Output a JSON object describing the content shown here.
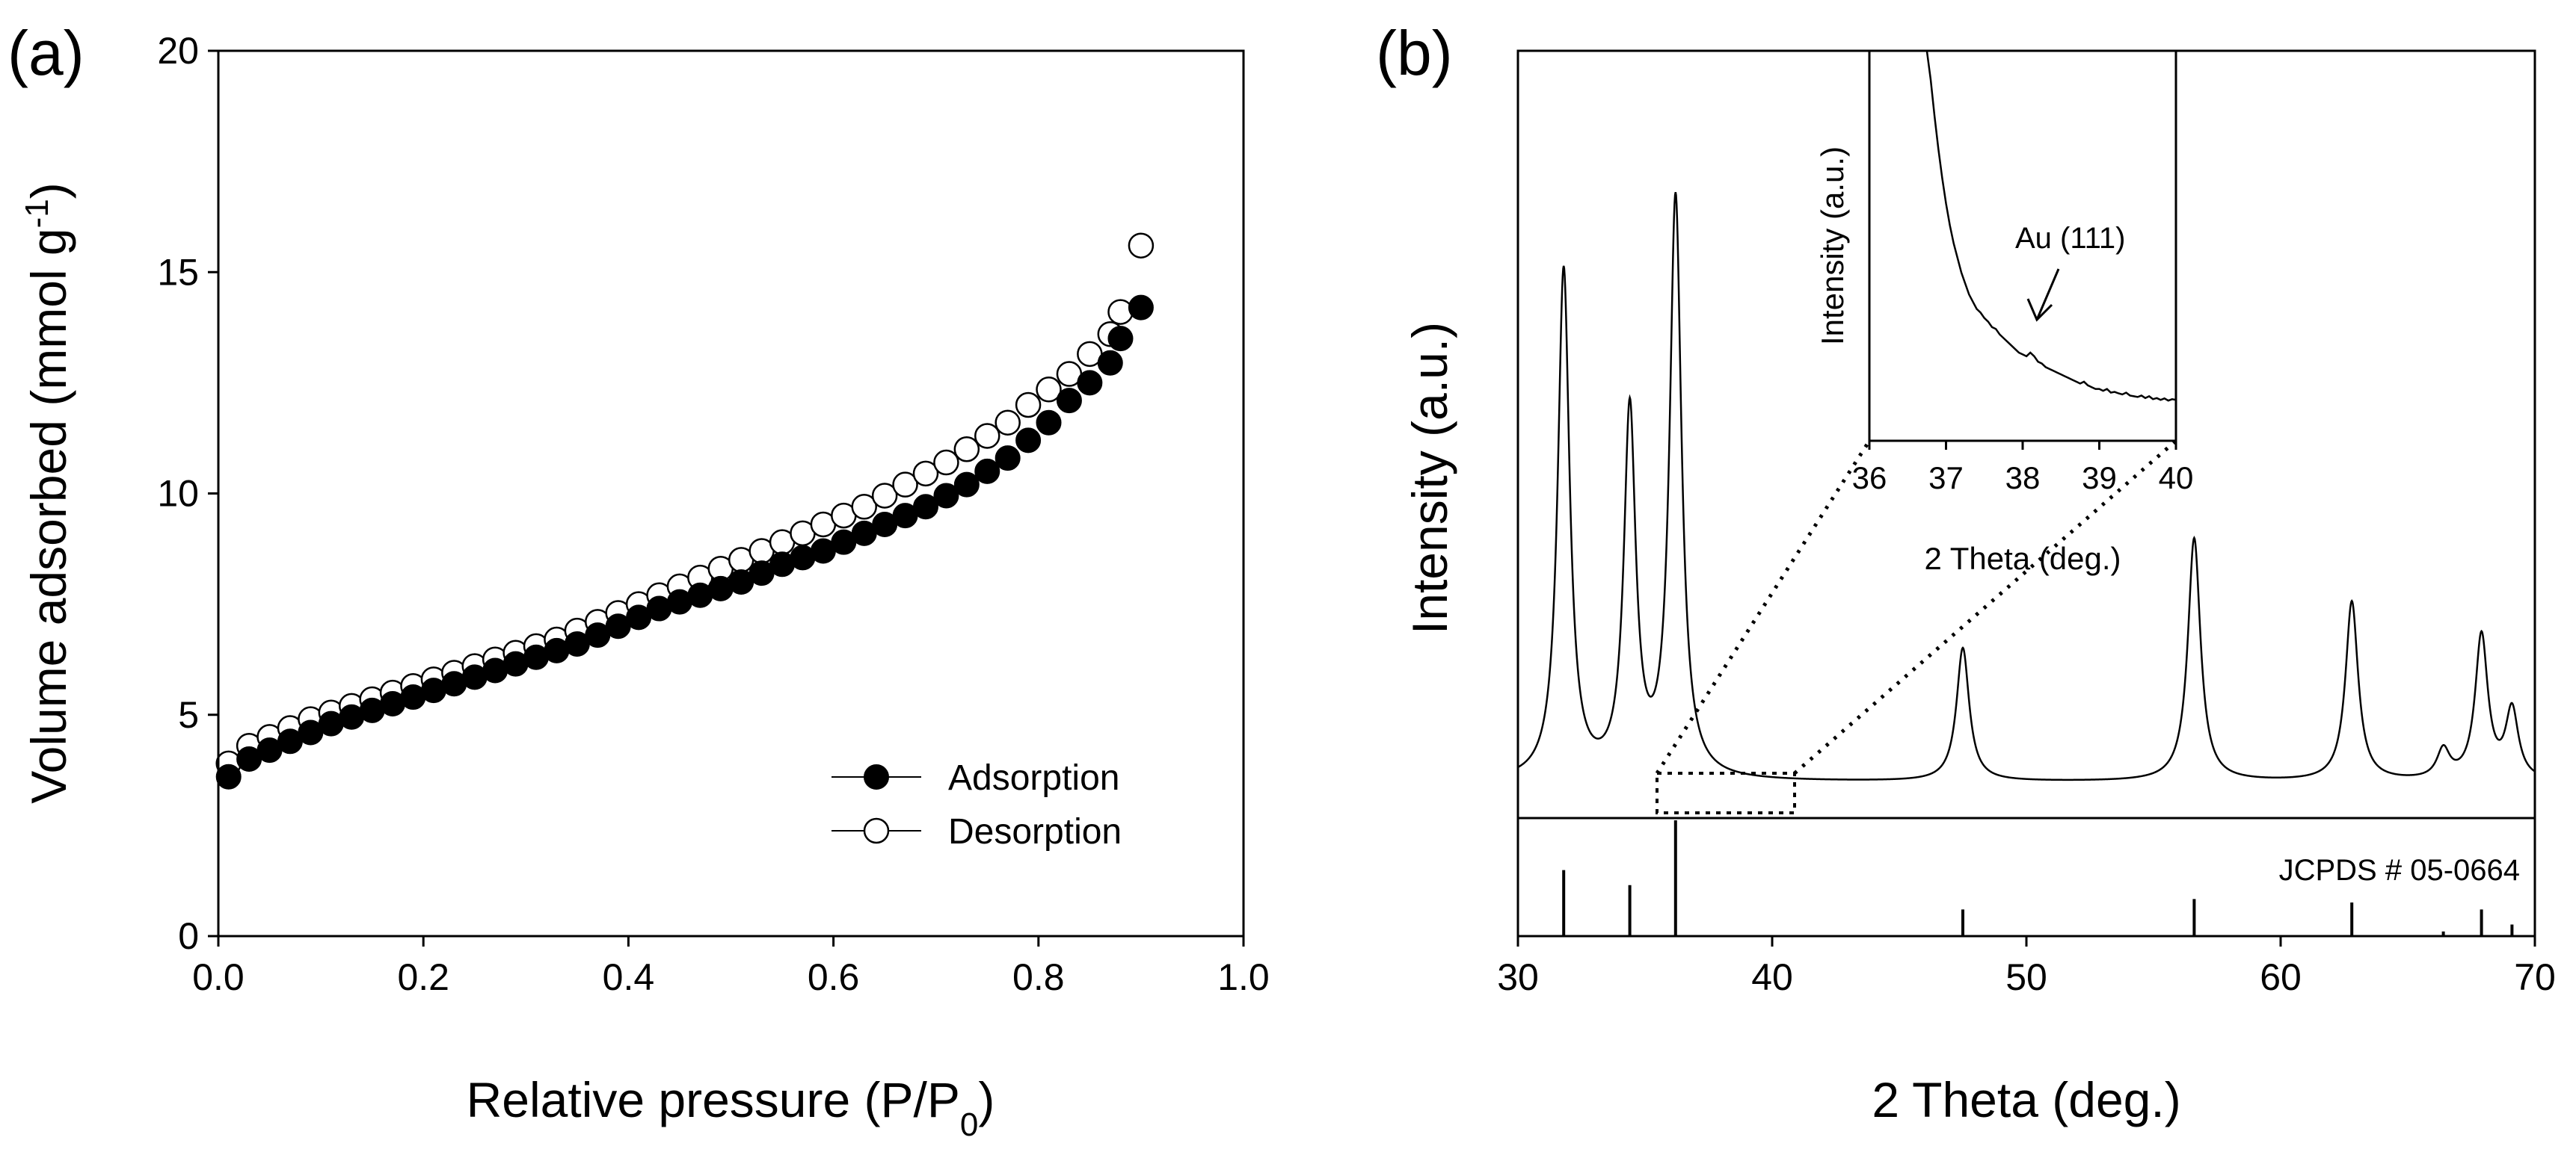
{
  "chart_data": [
    {
      "type": "scatter",
      "panel_label": "(a)",
      "xlabel": "Relative pressure (P/P",
      "xlabel_sub": "0",
      "xlabel_end": ")",
      "ylabel": "Volume adsorbed (mmol g",
      "ylabel_sup": "-1",
      "ylabel_end": ")",
      "xlim": [
        0,
        1.0
      ],
      "ylim": [
        0,
        20
      ],
      "x_ticks": [
        "0.0",
        "0.2",
        "0.4",
        "0.6",
        "0.8",
        "1.0"
      ],
      "y_ticks": [
        "0",
        "5",
        "10",
        "15",
        "20"
      ],
      "grid": false,
      "legend_position": "bottom-right",
      "series": [
        {
          "name": "Adsorption",
          "marker": "filled-circle",
          "x": [
            0.01,
            0.03,
            0.05,
            0.07,
            0.09,
            0.11,
            0.13,
            0.15,
            0.17,
            0.19,
            0.21,
            0.23,
            0.25,
            0.27,
            0.29,
            0.31,
            0.33,
            0.35,
            0.37,
            0.39,
            0.41,
            0.43,
            0.45,
            0.47,
            0.49,
            0.51,
            0.53,
            0.55,
            0.57,
            0.59,
            0.61,
            0.63,
            0.65,
            0.67,
            0.69,
            0.71,
            0.73,
            0.75,
            0.77,
            0.79,
            0.81,
            0.83,
            0.85,
            0.87,
            0.88,
            0.9
          ],
          "y": [
            3.6,
            4.0,
            4.2,
            4.4,
            4.6,
            4.8,
            4.95,
            5.1,
            5.25,
            5.4,
            5.55,
            5.7,
            5.85,
            6.0,
            6.15,
            6.3,
            6.45,
            6.6,
            6.8,
            7.0,
            7.2,
            7.4,
            7.55,
            7.7,
            7.85,
            8.0,
            8.2,
            8.4,
            8.55,
            8.7,
            8.9,
            9.1,
            9.3,
            9.5,
            9.7,
            9.95,
            10.2,
            10.5,
            10.8,
            11.2,
            11.6,
            12.1,
            12.5,
            12.95,
            13.5,
            14.2
          ]
        },
        {
          "name": "Desorption",
          "marker": "open-circle",
          "x": [
            0.01,
            0.03,
            0.05,
            0.07,
            0.09,
            0.11,
            0.13,
            0.15,
            0.17,
            0.19,
            0.21,
            0.23,
            0.25,
            0.27,
            0.29,
            0.31,
            0.33,
            0.35,
            0.37,
            0.39,
            0.41,
            0.43,
            0.45,
            0.47,
            0.49,
            0.51,
            0.53,
            0.55,
            0.57,
            0.59,
            0.61,
            0.63,
            0.65,
            0.67,
            0.69,
            0.71,
            0.73,
            0.75,
            0.77,
            0.79,
            0.81,
            0.83,
            0.85,
            0.87,
            0.88,
            0.9
          ],
          "y": [
            3.9,
            4.3,
            4.5,
            4.7,
            4.9,
            5.05,
            5.2,
            5.35,
            5.5,
            5.65,
            5.8,
            5.95,
            6.1,
            6.25,
            6.4,
            6.55,
            6.7,
            6.9,
            7.1,
            7.3,
            7.5,
            7.7,
            7.9,
            8.1,
            8.3,
            8.5,
            8.7,
            8.9,
            9.1,
            9.3,
            9.5,
            9.7,
            9.95,
            10.2,
            10.45,
            10.7,
            11.0,
            11.3,
            11.6,
            12.0,
            12.35,
            12.7,
            13.15,
            13.6,
            14.1,
            15.6
          ]
        }
      ]
    },
    {
      "type": "line",
      "panel_label": "(b)",
      "xlabel": "2 Theta (deg.)",
      "ylabel": "Intensity (a.u.)",
      "xlim": [
        30,
        70
      ],
      "x_ticks": [
        "30",
        "40",
        "50",
        "60",
        "70"
      ],
      "grid": false,
      "baseline": 0.03,
      "peaks": [
        {
          "x": 31.8,
          "height": 0.88,
          "width": 0.28
        },
        {
          "x": 34.4,
          "height": 0.63,
          "width": 0.28
        },
        {
          "x": 36.2,
          "height": 1.0,
          "width": 0.28
        },
        {
          "x": 47.5,
          "height": 0.23,
          "width": 0.3
        },
        {
          "x": 56.6,
          "height": 0.42,
          "width": 0.3
        },
        {
          "x": 62.8,
          "height": 0.31,
          "width": 0.3
        },
        {
          "x": 66.4,
          "height": 0.05,
          "width": 0.3
        },
        {
          "x": 67.9,
          "height": 0.25,
          "width": 0.3
        },
        {
          "x": 69.1,
          "height": 0.12,
          "width": 0.3
        }
      ],
      "reference": {
        "label": "JCPDS # 05-0664",
        "lines": [
          {
            "x": 31.8,
            "intensity": 0.57
          },
          {
            "x": 34.4,
            "intensity": 0.44
          },
          {
            "x": 36.2,
            "intensity": 1.0
          },
          {
            "x": 47.5,
            "intensity": 0.23
          },
          {
            "x": 56.6,
            "intensity": 0.32
          },
          {
            "x": 62.8,
            "intensity": 0.29
          },
          {
            "x": 66.4,
            "intensity": 0.04
          },
          {
            "x": 67.9,
            "intensity": 0.23
          },
          {
            "x": 69.1,
            "intensity": 0.1
          }
        ]
      },
      "zoom_box_x": [
        36,
        40
      ],
      "inset": {
        "xlabel": "2 Theta (deg.)",
        "ylabel": "Intensity (a.u.)",
        "xlim": [
          36,
          40
        ],
        "x_ticks": [
          "36",
          "37",
          "38",
          "39",
          "40"
        ],
        "annotation": "Au (111)",
        "annotation_x": 38.1,
        "x": [
          36.75,
          36.8,
          36.85,
          36.9,
          36.95,
          37.0,
          37.05,
          37.1,
          37.15,
          37.2,
          37.25,
          37.3,
          37.35,
          37.4,
          37.45,
          37.5,
          37.55,
          37.6,
          37.65,
          37.7,
          37.75,
          37.8,
          37.85,
          37.9,
          37.95,
          38.0,
          38.05,
          38.1,
          38.15,
          38.2,
          38.25,
          38.3,
          38.35,
          38.4,
          38.45,
          38.5,
          38.55,
          38.6,
          38.65,
          38.7,
          38.75,
          38.8,
          38.85,
          38.9,
          38.95,
          39.0,
          39.05,
          39.1,
          39.15,
          39.2,
          39.25,
          39.3,
          39.35,
          39.4,
          39.45,
          39.5,
          39.55,
          39.6,
          39.65,
          39.7,
          39.75,
          39.8,
          39.85,
          39.9,
          39.95,
          40.0
        ],
        "y": [
          1.0,
          0.9,
          0.8,
          0.71,
          0.63,
          0.56,
          0.5,
          0.45,
          0.41,
          0.37,
          0.34,
          0.31,
          0.29,
          0.27,
          0.26,
          0.245,
          0.235,
          0.22,
          0.215,
          0.2,
          0.19,
          0.18,
          0.17,
          0.16,
          0.15,
          0.145,
          0.14,
          0.15,
          0.14,
          0.125,
          0.12,
          0.11,
          0.105,
          0.1,
          0.095,
          0.09,
          0.085,
          0.08,
          0.075,
          0.07,
          0.065,
          0.07,
          0.06,
          0.055,
          0.05,
          0.05,
          0.045,
          0.05,
          0.04,
          0.042,
          0.038,
          0.035,
          0.04,
          0.032,
          0.03,
          0.028,
          0.032,
          0.025,
          0.03,
          0.022,
          0.025,
          0.02,
          0.024,
          0.018,
          0.022,
          0.02
        ]
      }
    }
  ]
}
